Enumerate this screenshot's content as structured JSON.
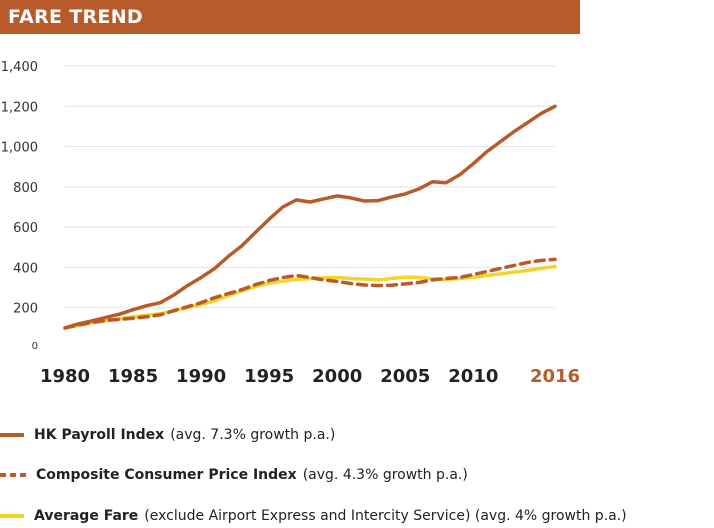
{
  "header": {
    "title": "FARE TREND",
    "color": "#b85a2a"
  },
  "chart_data": {
    "type": "line",
    "x_ticks": [
      "1980",
      "1985",
      "1990",
      "1995",
      "2000",
      "2005",
      "2010",
      "2016"
    ],
    "highlight_tick": "2016",
    "y_ticks": [
      "0",
      "200",
      "400",
      "600",
      "800",
      "1,000",
      "1,200",
      "1,400"
    ],
    "xlim": [
      1980,
      2016
    ],
    "ylim": [
      0,
      1400
    ],
    "grid": "horizontal",
    "legend_position": "bottom",
    "series": [
      {
        "name": "HK Payroll Index",
        "note": "(avg. 7.3% growth p.a.)",
        "color": "#b85a2a",
        "style": "solid",
        "x": [
          1980,
          1981,
          1982,
          1983,
          1984,
          1985,
          1986,
          1987,
          1988,
          1989,
          1990,
          1991,
          1992,
          1993,
          1994,
          1995,
          1996,
          1997,
          1998,
          1999,
          2000,
          2001,
          2002,
          2003,
          2004,
          2005,
          2006,
          2007,
          2008,
          2009,
          2010,
          2011,
          2012,
          2013,
          2014,
          2015,
          2016
        ],
        "y": [
          100,
          120,
          135,
          152,
          168,
          190,
          210,
          225,
          263,
          310,
          350,
          395,
          455,
          508,
          575,
          640,
          700,
          735,
          725,
          740,
          755,
          745,
          730,
          732,
          750,
          765,
          790,
          825,
          820,
          860,
          915,
          975,
          1025,
          1075,
          1120,
          1165,
          1200
        ]
      },
      {
        "name": "Composite Consumer Price Index",
        "note": "(avg. 4.3% growth p.a.)",
        "color": "#b85a2a",
        "style": "dashed",
        "x": [
          1980,
          1981,
          1982,
          1983,
          1984,
          1985,
          1986,
          1987,
          1988,
          1989,
          1990,
          1991,
          1992,
          1993,
          1994,
          1995,
          1996,
          1997,
          1998,
          1999,
          2000,
          2001,
          2002,
          2003,
          2004,
          2005,
          2006,
          2007,
          2008,
          2009,
          2010,
          2011,
          2012,
          2013,
          2014,
          2015,
          2016
        ],
        "y": [
          100,
          115,
          127,
          137,
          142,
          148,
          155,
          165,
          185,
          205,
          225,
          250,
          270,
          290,
          315,
          335,
          350,
          360,
          350,
          338,
          330,
          320,
          313,
          310,
          312,
          318,
          325,
          338,
          345,
          350,
          365,
          380,
          395,
          410,
          425,
          435,
          440
        ]
      },
      {
        "name": "Average Fare",
        "note": "(exclude Airport Express and Intercity Service)  (avg. 4% growth p.a.)",
        "color": "#f5d42a",
        "style": "solid",
        "x": [
          1980,
          1981,
          1982,
          1983,
          1984,
          1985,
          1986,
          1987,
          1988,
          1989,
          1990,
          1991,
          1992,
          1993,
          1994,
          1995,
          1996,
          1997,
          1998,
          1999,
          2000,
          2001,
          2002,
          2003,
          2004,
          2005,
          2006,
          2007,
          2008,
          2009,
          2010,
          2011,
          2012,
          2013,
          2014,
          2015,
          2016
        ],
        "y": [
          100,
          112,
          125,
          135,
          145,
          155,
          163,
          170,
          185,
          200,
          215,
          235,
          260,
          283,
          305,
          322,
          332,
          340,
          345,
          348,
          350,
          345,
          342,
          338,
          345,
          352,
          350,
          343,
          340,
          345,
          352,
          360,
          368,
          377,
          385,
          395,
          405
        ]
      }
    ]
  }
}
